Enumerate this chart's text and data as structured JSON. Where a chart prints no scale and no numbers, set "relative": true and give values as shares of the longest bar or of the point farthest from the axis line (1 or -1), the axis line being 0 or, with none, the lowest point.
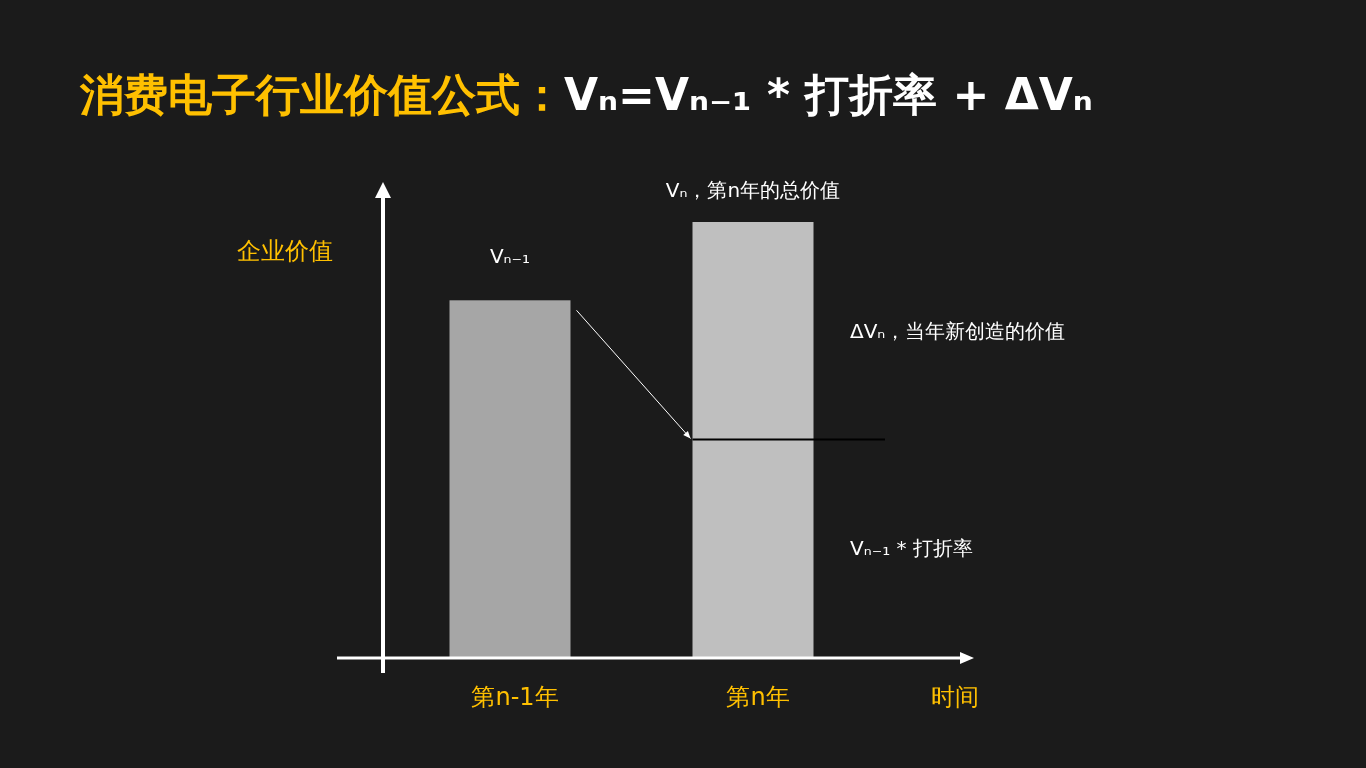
{
  "chart_data": {
    "type": "bar",
    "title": "消费电子行业价值公式：Vₙ=Vₙ₋₁ * 打折率 + ΔVₙ",
    "xlabel": "时间",
    "ylabel": "企业价值",
    "categories": [
      "第n-1年",
      "第n年"
    ],
    "relative": true,
    "stacked": true,
    "series": [
      {
        "values": [
          0.82,
          0.5
        ],
        "colors": [
          "#a6a6a6",
          "#bfbfbf"
        ]
      },
      {
        "values": [
          null,
          0.5
        ],
        "color": "#bfbfbf"
      }
    ],
    "annotations": [
      {
        "text": "Vₙ₋₁",
        "x": "第n-1年",
        "y": 0.82
      },
      {
        "text": "Vₙ，第n年的总价值",
        "x": "第n年",
        "y": 1
      },
      "ΔVₙ，当年新创造的价值",
      "Vₙ₋₁ * 打折率"
    ]
  }
}
